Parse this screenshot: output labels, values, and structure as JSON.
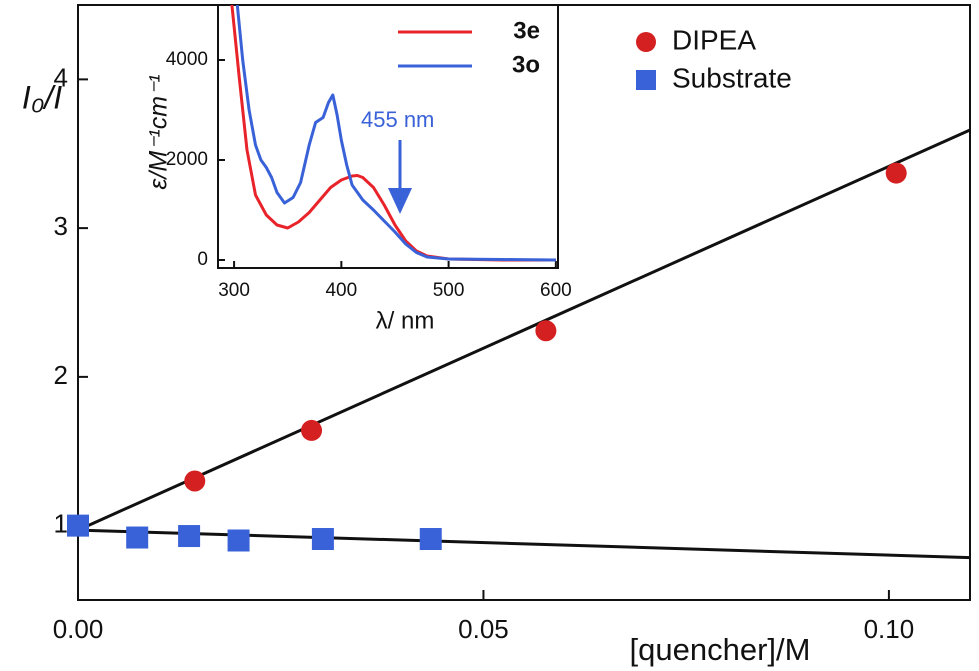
{
  "chart_data": [
    {
      "type": "scatter",
      "xlabel": "[quencher]/M",
      "ylabel": "I₀/I",
      "xlim": [
        0,
        0.11
      ],
      "ylim": [
        0.5,
        4.5
      ],
      "xticks": [
        {
          "value": 0,
          "label": "0.00"
        },
        {
          "value": 0.05,
          "label": "0.05"
        },
        {
          "value": 0.1,
          "label": "0.10"
        }
      ],
      "yticks": [
        1,
        2,
        3,
        4
      ],
      "legend": "upper right",
      "series": [
        {
          "name": "DIPEA",
          "color": "#d42020",
          "marker": "circle",
          "x": [
            0.0144,
            0.0288,
            0.0577,
            0.1009
          ],
          "values": [
            1.3,
            1.64,
            2.31,
            3.37
          ]
        },
        {
          "name": "Substrate",
          "color": "#3a62d8",
          "marker": "square",
          "x": [
            0,
            0.0073,
            0.0137,
            0.0198,
            0.0302,
            0.0435
          ],
          "values": [
            1.0,
            0.92,
            0.93,
            0.9,
            0.91,
            0.91
          ]
        }
      ],
      "fit_lines": [
        {
          "color": "#111111",
          "x": [
            0,
            0.11
          ],
          "values": [
            0.97,
            3.66
          ]
        },
        {
          "color": "#111111",
          "x": [
            0,
            0.11
          ],
          "values": [
            0.97,
            0.785
          ]
        }
      ]
    },
    {
      "type": "line",
      "xlabel": "λ/ nm",
      "ylabel": "ε/M⁻¹cm⁻¹",
      "xlim": [
        285,
        602
      ],
      "ylim": [
        -160,
        5100
      ],
      "xticks": [
        300,
        400,
        500,
        600
      ],
      "yticks": [
        0,
        2000,
        4000
      ],
      "legend": "upper right",
      "annotation": "455 nm",
      "series": [
        {
          "name": "3e",
          "color": "#e8232a",
          "x": [
            298,
            305,
            312,
            320,
            330,
            340,
            350,
            360,
            370,
            380,
            390,
            400,
            410,
            415,
            420,
            430,
            440,
            450,
            460,
            470,
            480,
            500,
            550,
            600
          ],
          "values": [
            5100,
            3600,
            2200,
            1300,
            900,
            700,
            640,
            760,
            950,
            1200,
            1450,
            1600,
            1680,
            1690,
            1650,
            1450,
            1100,
            700,
            380,
            180,
            80,
            20,
            0,
            0
          ]
        },
        {
          "name": "3o",
          "color": "#3a62d8",
          "x": [
            303,
            308,
            314,
            320,
            325,
            330,
            335,
            340,
            347,
            355,
            362,
            370,
            376,
            383,
            388,
            392,
            396,
            400,
            405,
            410,
            420,
            430,
            440,
            450,
            460,
            470,
            480,
            500,
            550,
            600
          ],
          "values": [
            5100,
            4000,
            3000,
            2300,
            2000,
            1850,
            1650,
            1350,
            1140,
            1250,
            1550,
            2300,
            2750,
            2850,
            3150,
            3300,
            2900,
            2400,
            1900,
            1500,
            1200,
            1000,
            780,
            560,
            320,
            150,
            60,
            20,
            10,
            0
          ]
        }
      ]
    }
  ]
}
